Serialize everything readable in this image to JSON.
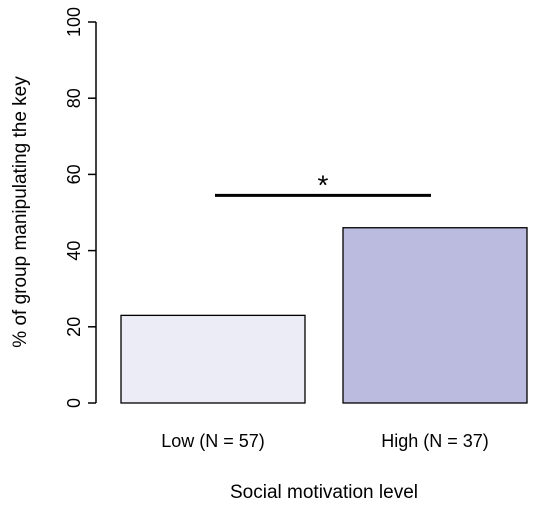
{
  "chart_data": {
    "type": "bar",
    "title": "",
    "xlabel": "Social motivation level",
    "ylabel": "% of group manipulating the key",
    "ylim": [
      0,
      100
    ],
    "yticks": [
      0,
      20,
      40,
      60,
      80,
      100
    ],
    "categories": [
      "Low (N = 57)",
      "High (N = 37)"
    ],
    "values": [
      23,
      46
    ],
    "bar_colors": [
      "#ececf7",
      "#babbde"
    ],
    "significance": {
      "between": [
        "Low (N = 57)",
        "High (N = 37)"
      ],
      "label": "*",
      "y": 54.5
    },
    "grid": false,
    "legend": "none"
  }
}
